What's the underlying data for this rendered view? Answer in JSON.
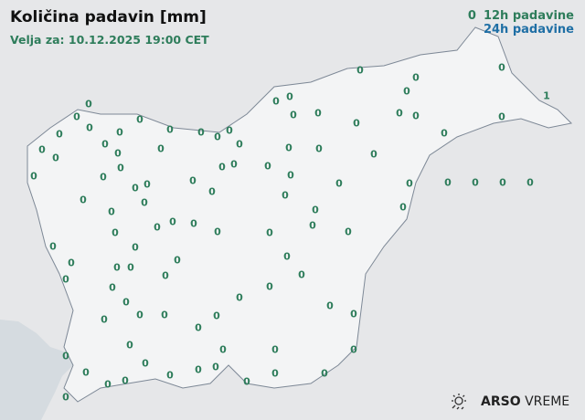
{
  "title": "Količina padavin [mm]",
  "valid": "Velja za: 10.12.2025 19:00 CET",
  "legend": {
    "sample_value": "0",
    "item_12h": "12h padavine",
    "item_24h": "24h padavine",
    "color_12h": "#2e7d5b",
    "color_24h": "#1f6fa5"
  },
  "logo": {
    "brand_bold": "ARSO",
    "brand_light": "VREME",
    "icon": "sun-rain-icon"
  },
  "stations": {
    "values_12h": [
      "0",
      "0",
      "0",
      "0",
      "1",
      "0",
      "0",
      "0",
      "0",
      "0",
      "0",
      "0",
      "0",
      "0",
      "0",
      "0",
      "0",
      "0",
      "0",
      "0",
      "0",
      "0",
      "0",
      "0",
      "0",
      "0",
      "0",
      "0",
      "0",
      "0",
      "0",
      "0",
      "0",
      "0",
      "0",
      "0",
      "0",
      "0",
      "0",
      "0",
      "0",
      "0",
      "0",
      "0",
      "0",
      "0",
      "0",
      "0",
      "0",
      "0",
      "0",
      "0",
      "0",
      "0",
      "0",
      "0",
      "0",
      "0",
      "0",
      "0",
      "0",
      "0",
      "0",
      "0",
      "0",
      "0",
      "0",
      "0",
      "0",
      "0",
      "0",
      "0",
      "0",
      "0",
      "0",
      "0",
      "0",
      "0",
      "0",
      "0",
      "0",
      "0",
      "0",
      "0",
      "0",
      "0",
      "0",
      "0",
      "0",
      "0",
      "0",
      "0",
      "0",
      "0",
      "0",
      "0",
      "0",
      "0",
      "0",
      "0",
      "0"
    ]
  }
}
